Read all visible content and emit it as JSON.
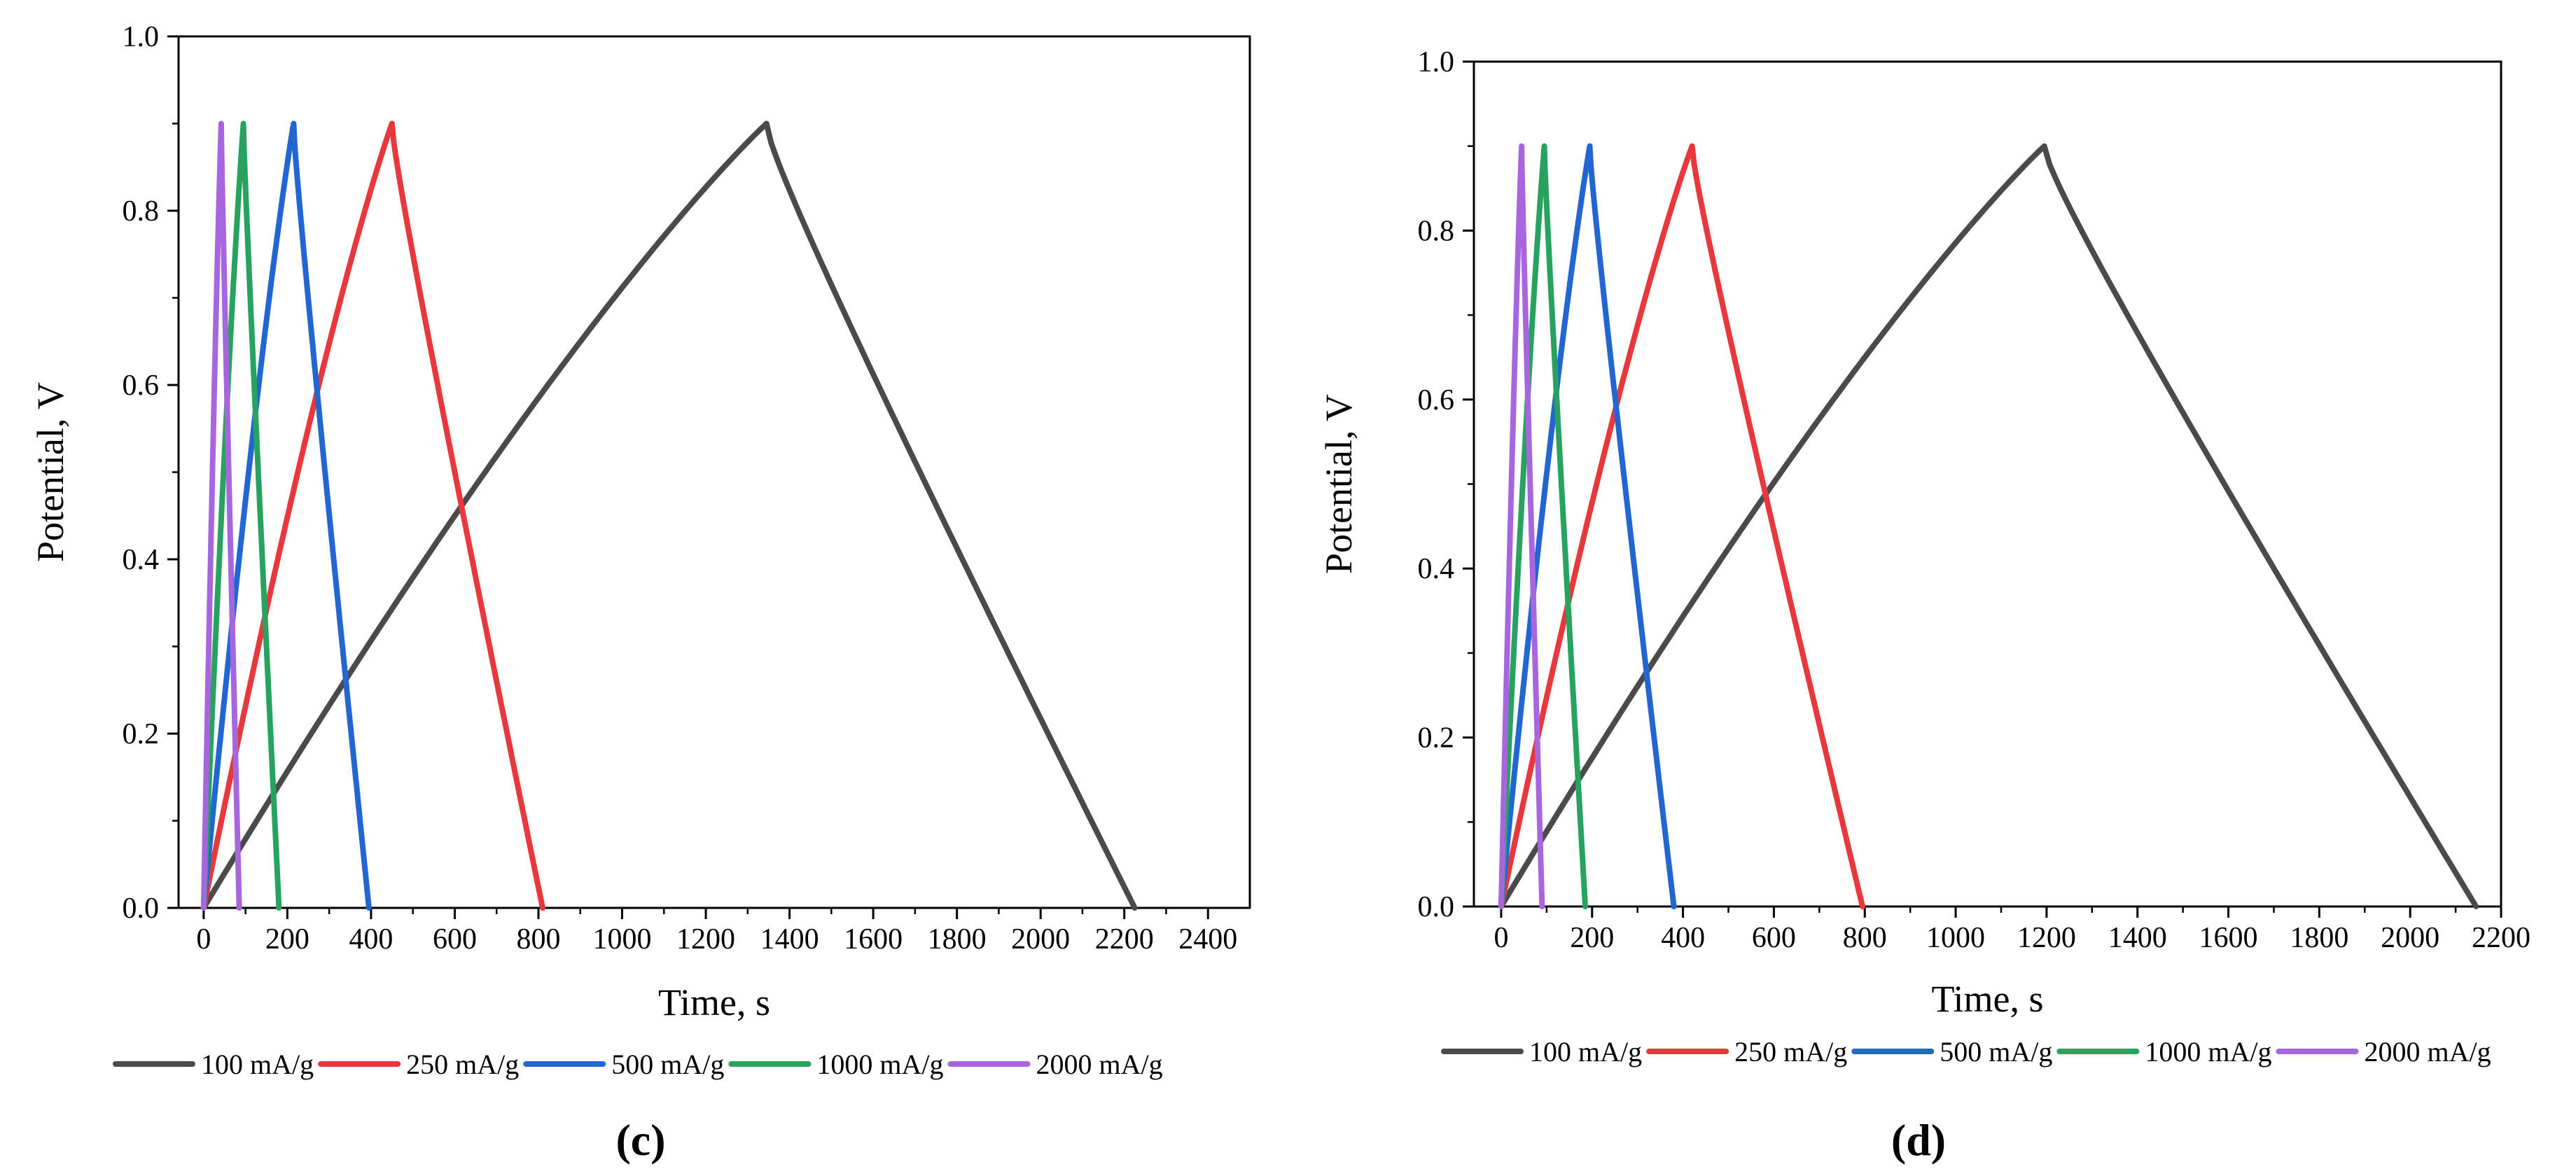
{
  "chart_data": [
    {
      "type": "line",
      "panel_label": "(c)",
      "title": "",
      "xlabel": "Time, s",
      "ylabel": "Potential, V",
      "xlim": [
        -60,
        2500
      ],
      "ylim": [
        0.0,
        1.0
      ],
      "xticks": [
        0,
        200,
        400,
        600,
        800,
        1000,
        1200,
        1400,
        1600,
        1800,
        2000,
        2200,
        2400
      ],
      "yticks": [
        0.0,
        0.2,
        0.4,
        0.6,
        0.8,
        1.0
      ],
      "xtick_labels": [
        "0",
        "200",
        "400",
        "600",
        "800",
        "1000",
        "1200",
        "1400",
        "1600",
        "1800",
        "2000",
        "2200",
        "2400"
      ],
      "ytick_labels": [
        "0.0",
        "0.2",
        "0.4",
        "0.6",
        "0.8",
        "1.0"
      ],
      "legend_position": "bottom",
      "grid": false,
      "series": [
        {
          "name": "100 mA/g",
          "color": "#4a4a4a",
          "charge_end": 1345,
          "discharge_end": 2225,
          "vmax": 0.9
        },
        {
          "name": "250 mA/g",
          "color": "#e8383b",
          "charge_end": 450,
          "discharge_end": 810,
          "vmax": 0.9
        },
        {
          "name": "500 mA/g",
          "color": "#2166d1",
          "charge_end": 215,
          "discharge_end": 395,
          "vmax": 0.9
        },
        {
          "name": "1000 mA/g",
          "color": "#27a35f",
          "charge_end": 95,
          "discharge_end": 180,
          "vmax": 0.9
        },
        {
          "name": "2000 mA/g",
          "color": "#a866de",
          "charge_end": 42,
          "discharge_end": 85,
          "vmax": 0.9
        }
      ]
    },
    {
      "type": "line",
      "panel_label": "(d)",
      "title": "",
      "xlabel": "Time, s",
      "ylabel": "Potential, V",
      "xlim": [
        -60,
        2200
      ],
      "ylim": [
        0.0,
        1.0
      ],
      "xticks": [
        0,
        200,
        400,
        600,
        800,
        1000,
        1200,
        1400,
        1600,
        1800,
        2000,
        2200
      ],
      "yticks": [
        0.0,
        0.2,
        0.4,
        0.6,
        0.8,
        1.0
      ],
      "xtick_labels": [
        "0",
        "200",
        "400",
        "600",
        "800",
        "1000",
        "1200",
        "1400",
        "1600",
        "1800",
        "2000",
        "2200"
      ],
      "ytick_labels": [
        "0.0",
        "0.2",
        "0.4",
        "0.6",
        "0.8",
        "1.0"
      ],
      "legend_position": "bottom",
      "grid": false,
      "series": [
        {
          "name": "100 mA/g",
          "color": "#4a4a4a",
          "charge_end": 1195,
          "discharge_end": 2145,
          "vmax": 0.9
        },
        {
          "name": "250 mA/g",
          "color": "#e8383b",
          "charge_end": 420,
          "discharge_end": 795,
          "vmax": 0.9
        },
        {
          "name": "500 mA/g",
          "color": "#2166d1",
          "charge_end": 195,
          "discharge_end": 380,
          "vmax": 0.9
        },
        {
          "name": "1000 mA/g",
          "color": "#27a35f",
          "charge_end": 95,
          "discharge_end": 185,
          "vmax": 0.9
        },
        {
          "name": "2000 mA/g",
          "color": "#a866de",
          "charge_end": 45,
          "discharge_end": 90,
          "vmax": 0.9
        }
      ]
    }
  ]
}
